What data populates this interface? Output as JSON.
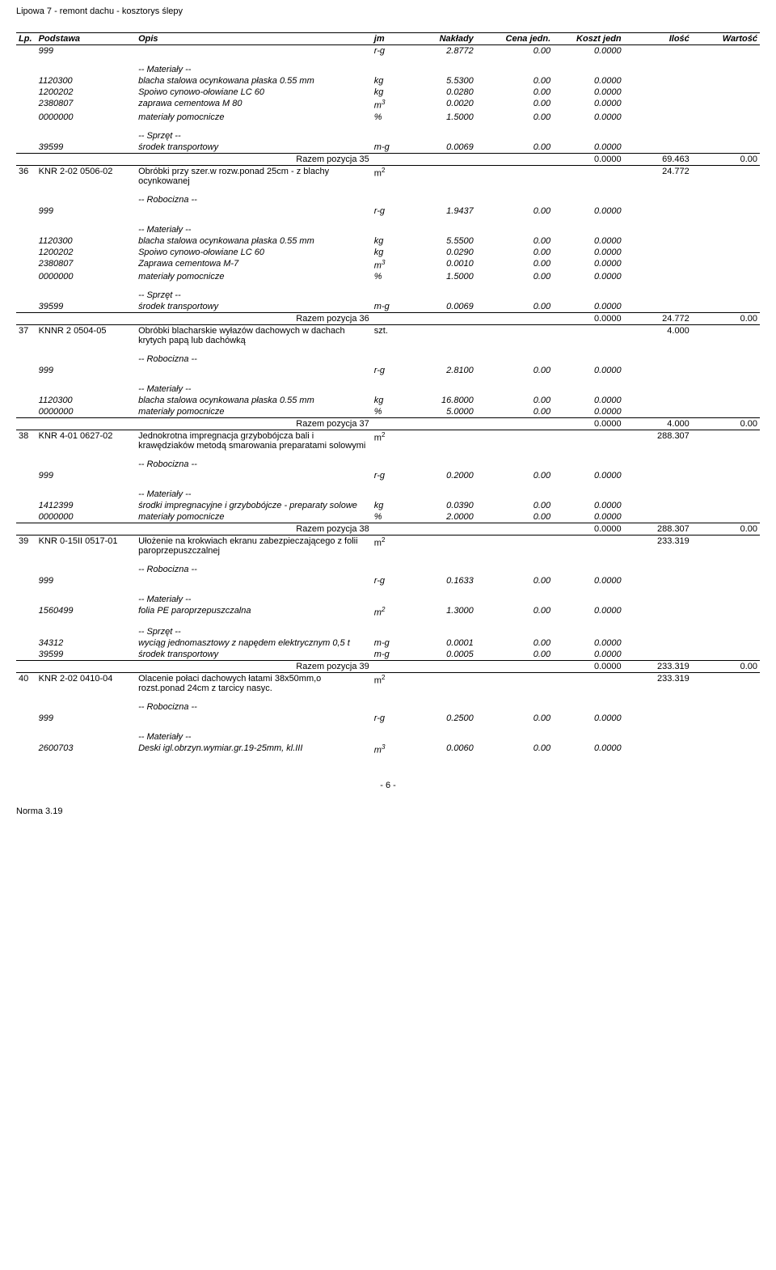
{
  "doc_title": "Lipowa 7 - remont dachu - kosztorys ślepy",
  "headers": {
    "lp": "Lp.",
    "podstawa": "Podstawa",
    "opis": "Opis",
    "jm": "jm",
    "naklady": "Nakłady",
    "cena": "Cena jedn.",
    "koszt": "Koszt jedn",
    "ilosc": "Ilość",
    "wartosc": "Wartość"
  },
  "rows": [
    {
      "type": "data",
      "podstawa": "999",
      "style": "italic",
      "jm": "r-g",
      "naklady": "2.8772",
      "cena": "0.00",
      "koszt": "0.0000"
    },
    {
      "type": "section",
      "opis": "-- Materiały --"
    },
    {
      "type": "data",
      "podstawa": "1120300",
      "opis": "blacha stalowa ocynkowana płaska 0.55 mm",
      "style": "italic",
      "jm": "kg",
      "naklady": "5.5300",
      "cena": "0.00",
      "koszt": "0.0000"
    },
    {
      "type": "data",
      "podstawa": "1200202",
      "opis": "Spoiwo cynowo-ołowiane LC 60",
      "style": "italic",
      "jm": "kg",
      "naklady": "0.0280",
      "cena": "0.00",
      "koszt": "0.0000"
    },
    {
      "type": "data",
      "podstawa": "2380807",
      "opis": "zaprawa cementowa M 80",
      "style": "italic",
      "jm": "m3",
      "sup": "3",
      "naklady": "0.0020",
      "cena": "0.00",
      "koszt": "0.0000"
    },
    {
      "type": "data",
      "podstawa": "0000000",
      "opis": "materiały pomocnicze",
      "style": "italic",
      "jm": "%",
      "naklady": "1.5000",
      "cena": "0.00",
      "koszt": "0.0000"
    },
    {
      "type": "section",
      "opis": "-- Sprzęt --"
    },
    {
      "type": "data",
      "podstawa": "39599",
      "opis": "środek transportowy",
      "style": "italic",
      "jm": "m-g",
      "naklady": "0.0069",
      "cena": "0.00",
      "koszt": "0.0000"
    },
    {
      "type": "razem",
      "opis": "Razem pozycja 35",
      "koszt": "0.0000",
      "ilosc": "69.463",
      "wartosc": "0.00"
    },
    {
      "type": "data",
      "lp": "36",
      "podstawa": "KNR 2-02 0506-02",
      "opis": "Obróbki przy szer.w rozw.ponad 25cm - z blachy ocynkowanej",
      "jm": "m2",
      "sup": "2",
      "ilosc": "24.772"
    },
    {
      "type": "section",
      "opis": "-- Robocizna --"
    },
    {
      "type": "data",
      "podstawa": "999",
      "style": "italic",
      "jm": "r-g",
      "naklady": "1.9437",
      "cena": "0.00",
      "koszt": "0.0000"
    },
    {
      "type": "section",
      "opis": "-- Materiały --"
    },
    {
      "type": "data",
      "podstawa": "1120300",
      "opis": "blacha stalowa ocynkowana płaska 0.55 mm",
      "style": "italic",
      "jm": "kg",
      "naklady": "5.5500",
      "cena": "0.00",
      "koszt": "0.0000"
    },
    {
      "type": "data",
      "podstawa": "1200202",
      "opis": "Spoiwo cynowo-ołowiane LC 60",
      "style": "italic",
      "jm": "kg",
      "naklady": "0.0290",
      "cena": "0.00",
      "koszt": "0.0000"
    },
    {
      "type": "data",
      "podstawa": "2380807",
      "opis": "Zaprawa cementowa M-7",
      "style": "italic",
      "jm": "m3",
      "sup": "3",
      "naklady": "0.0010",
      "cena": "0.00",
      "koszt": "0.0000"
    },
    {
      "type": "data",
      "podstawa": "0000000",
      "opis": "materiały pomocnicze",
      "style": "italic",
      "jm": "%",
      "naklady": "1.5000",
      "cena": "0.00",
      "koszt": "0.0000"
    },
    {
      "type": "section",
      "opis": "-- Sprzęt --"
    },
    {
      "type": "data",
      "podstawa": "39599",
      "opis": "środek transportowy",
      "style": "italic",
      "jm": "m-g",
      "naklady": "0.0069",
      "cena": "0.00",
      "koszt": "0.0000"
    },
    {
      "type": "razem",
      "opis": "Razem pozycja 36",
      "koszt": "0.0000",
      "ilosc": "24.772",
      "wartosc": "0.00"
    },
    {
      "type": "data",
      "lp": "37",
      "podstawa": "KNNR 2 0504-05",
      "opis": "Obróbki blacharskie wyłazów dachowych w dachach krytych papą lub dachówką",
      "jm": "szt.",
      "ilosc": "4.000"
    },
    {
      "type": "section",
      "opis": "-- Robocizna --"
    },
    {
      "type": "data",
      "podstawa": "999",
      "style": "italic",
      "jm": "r-g",
      "naklady": "2.8100",
      "cena": "0.00",
      "koszt": "0.0000"
    },
    {
      "type": "section",
      "opis": "-- Materiały --"
    },
    {
      "type": "data",
      "podstawa": "1120300",
      "opis": "blacha stalowa ocynkowana płaska 0.55 mm",
      "style": "italic",
      "jm": "kg",
      "naklady": "16.8000",
      "cena": "0.00",
      "koszt": "0.0000"
    },
    {
      "type": "data",
      "podstawa": "0000000",
      "opis": "materiały pomocnicze",
      "style": "italic",
      "jm": "%",
      "naklady": "5.0000",
      "cena": "0.00",
      "koszt": "0.0000"
    },
    {
      "type": "razem",
      "opis": "Razem pozycja 37",
      "koszt": "0.0000",
      "ilosc": "4.000",
      "wartosc": "0.00"
    },
    {
      "type": "data",
      "lp": "38",
      "podstawa": "KNR 4-01 0627-02",
      "opis": "Jednokrotna impregnacja grzybobójcza bali i krawędziaków metodą smarowania preparatami solowymi",
      "jm": "m2",
      "sup": "2",
      "ilosc": "288.307"
    },
    {
      "type": "section",
      "opis": "-- Robocizna --"
    },
    {
      "type": "data",
      "podstawa": "999",
      "style": "italic",
      "jm": "r-g",
      "naklady": "0.2000",
      "cena": "0.00",
      "koszt": "0.0000"
    },
    {
      "type": "section",
      "opis": "-- Materiały --"
    },
    {
      "type": "data",
      "podstawa": "1412399",
      "opis": "środki impregnacyjne i grzybobójcze - preparaty solowe",
      "style": "italic",
      "jm": "kg",
      "naklady": "0.0390",
      "cena": "0.00",
      "koszt": "0.0000"
    },
    {
      "type": "data",
      "podstawa": "0000000",
      "opis": "materiały pomocnicze",
      "style": "italic",
      "jm": "%",
      "naklady": "2.0000",
      "cena": "0.00",
      "koszt": "0.0000"
    },
    {
      "type": "razem",
      "opis": "Razem pozycja 38",
      "koszt": "0.0000",
      "ilosc": "288.307",
      "wartosc": "0.00"
    },
    {
      "type": "data",
      "lp": "39",
      "podstawa": "KNR 0-15II 0517-01",
      "opis": "Ułożenie na krokwiach ekranu zabezpieczającego z folii paroprzepuszczalnej",
      "jm": "m2",
      "sup": "2",
      "ilosc": "233.319"
    },
    {
      "type": "section",
      "opis": "-- Robocizna --"
    },
    {
      "type": "data",
      "podstawa": "999",
      "style": "italic",
      "jm": "r-g",
      "naklady": "0.1633",
      "cena": "0.00",
      "koszt": "0.0000"
    },
    {
      "type": "section",
      "opis": "-- Materiały --"
    },
    {
      "type": "data",
      "podstawa": "1560499",
      "opis": "folia PE paroprzepuszczalna",
      "style": "italic",
      "jm": "m2",
      "sup": "2",
      "naklady": "1.3000",
      "cena": "0.00",
      "koszt": "0.0000"
    },
    {
      "type": "section",
      "opis": "-- Sprzęt --"
    },
    {
      "type": "data",
      "podstawa": "34312",
      "opis": "wyciąg jednomasztowy z napędem elektrycznym 0,5 t",
      "style": "italic",
      "jm": "m-g",
      "naklady": "0.0001",
      "cena": "0.00",
      "koszt": "0.0000"
    },
    {
      "type": "data",
      "podstawa": "39599",
      "opis": "środek transportowy",
      "style": "italic",
      "jm": "m-g",
      "naklady": "0.0005",
      "cena": "0.00",
      "koszt": "0.0000"
    },
    {
      "type": "razem",
      "opis": "Razem pozycja 39",
      "koszt": "0.0000",
      "ilosc": "233.319",
      "wartosc": "0.00"
    },
    {
      "type": "data",
      "lp": "40",
      "podstawa": "KNR 2-02 0410-04",
      "opis": "Olacenie połaci dachowych łatami 38x50mm,o rozst.ponad 24cm z tarcicy nasyc.",
      "jm": "m2",
      "sup": "2",
      "ilosc": "233.319"
    },
    {
      "type": "section",
      "opis": "-- Robocizna --"
    },
    {
      "type": "data",
      "podstawa": "999",
      "style": "italic",
      "jm": "r-g",
      "naklady": "0.2500",
      "cena": "0.00",
      "koszt": "0.0000"
    },
    {
      "type": "section",
      "opis": "-- Materiały --"
    },
    {
      "type": "data",
      "podstawa": "2600703",
      "opis": "Deski igl.obrzyn.wymiar.gr.19-25mm, kl.III",
      "style": "italic",
      "jm": "m3",
      "sup": "3",
      "naklady": "0.0060",
      "cena": "0.00",
      "koszt": "0.0000"
    }
  ],
  "footer_page": "- 6 -",
  "footer_norma": "Norma 3.19"
}
